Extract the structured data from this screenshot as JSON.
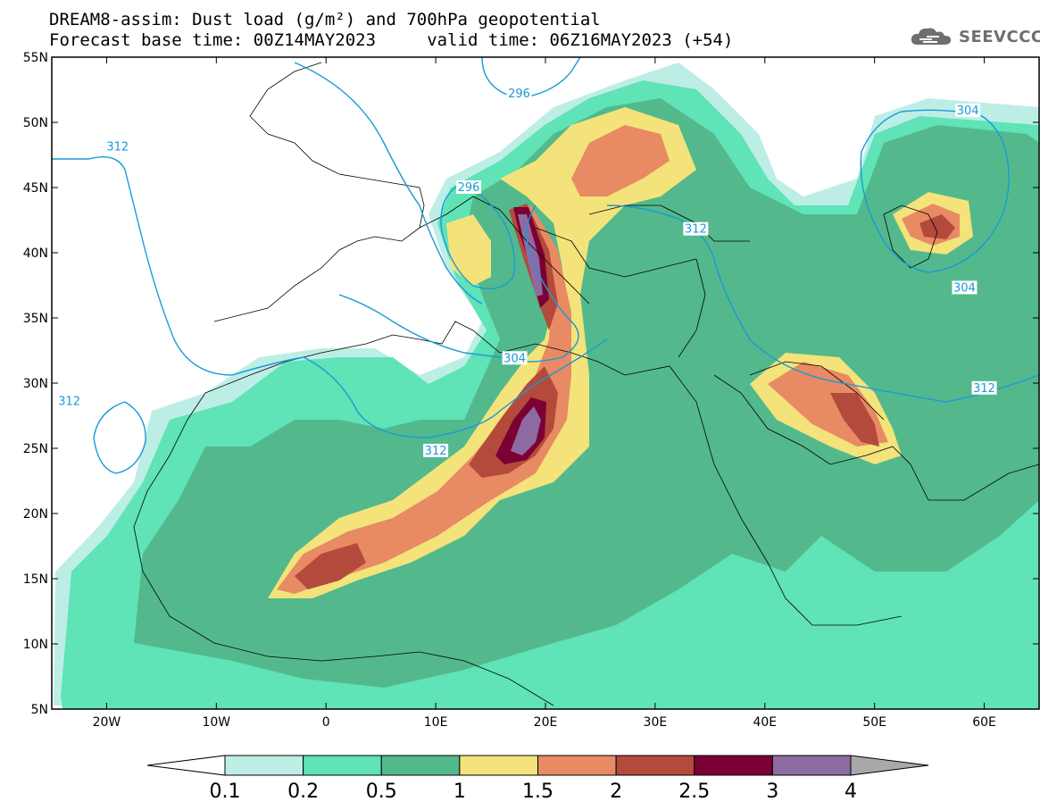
{
  "header": {
    "title_line1": "DREAM8-assim: Dust load (g/m²) and 700hPa geopotential",
    "title_line2": "Forecast base time: 00Z14MAY2023     valid time: 06Z16MAY2023 (+54)"
  },
  "logo": {
    "text": "SEEVCCC",
    "icon": "cloud-icon"
  },
  "map": {
    "lon_range": [
      -25,
      65
    ],
    "lat_range": [
      5,
      55
    ],
    "lat_ticks": [
      {
        "value": 55,
        "label": "55N"
      },
      {
        "value": 50,
        "label": "50N"
      },
      {
        "value": 45,
        "label": "45N"
      },
      {
        "value": 40,
        "label": "40N"
      },
      {
        "value": 35,
        "label": "35N"
      },
      {
        "value": 30,
        "label": "30N"
      },
      {
        "value": 25,
        "label": "25N"
      },
      {
        "value": 20,
        "label": "20N"
      },
      {
        "value": 15,
        "label": "15N"
      },
      {
        "value": 10,
        "label": "10N"
      },
      {
        "value": 5,
        "label": "5N"
      }
    ],
    "lon_ticks": [
      {
        "value": -20,
        "label": "20W"
      },
      {
        "value": -10,
        "label": "10W"
      },
      {
        "value": 0,
        "label": "0"
      },
      {
        "value": 10,
        "label": "10E"
      },
      {
        "value": 20,
        "label": "20E"
      },
      {
        "value": 30,
        "label": "30E"
      },
      {
        "value": 40,
        "label": "40E"
      },
      {
        "value": 50,
        "label": "50E"
      },
      {
        "value": 60,
        "label": "60E"
      }
    ],
    "contour_color": "#1a9ad6",
    "contour_labels": [
      {
        "text": "296",
        "lon": 17.6,
        "lat": 52.2
      },
      {
        "text": "304",
        "lon": 58.5,
        "lat": 50.9
      },
      {
        "text": "312",
        "lon": -19.0,
        "lat": 48.1
      },
      {
        "text": "296",
        "lon": 13.0,
        "lat": 45.0
      },
      {
        "text": "312",
        "lon": 33.7,
        "lat": 41.8
      },
      {
        "text": "304",
        "lon": 58.2,
        "lat": 37.3
      },
      {
        "text": "304",
        "lon": 17.2,
        "lat": 31.9
      },
      {
        "text": "312",
        "lon": -23.4,
        "lat": 28.6
      },
      {
        "text": "312",
        "lon": 10.0,
        "lat": 24.8
      },
      {
        "text": "312",
        "lon": 60.0,
        "lat": 29.6
      }
    ]
  },
  "colorbar": {
    "labels": [
      "0.1",
      "0.2",
      "0.5",
      "1",
      "1.5",
      "2",
      "2.5",
      "3",
      "4"
    ],
    "colors": [
      "#ffffff",
      "#bdeee6",
      "#5fe3b7",
      "#53b98c",
      "#f3e37a",
      "#e88a63",
      "#b34a3c",
      "#7b0033",
      "#8d6ba2",
      "#a9a9a9"
    ]
  }
}
